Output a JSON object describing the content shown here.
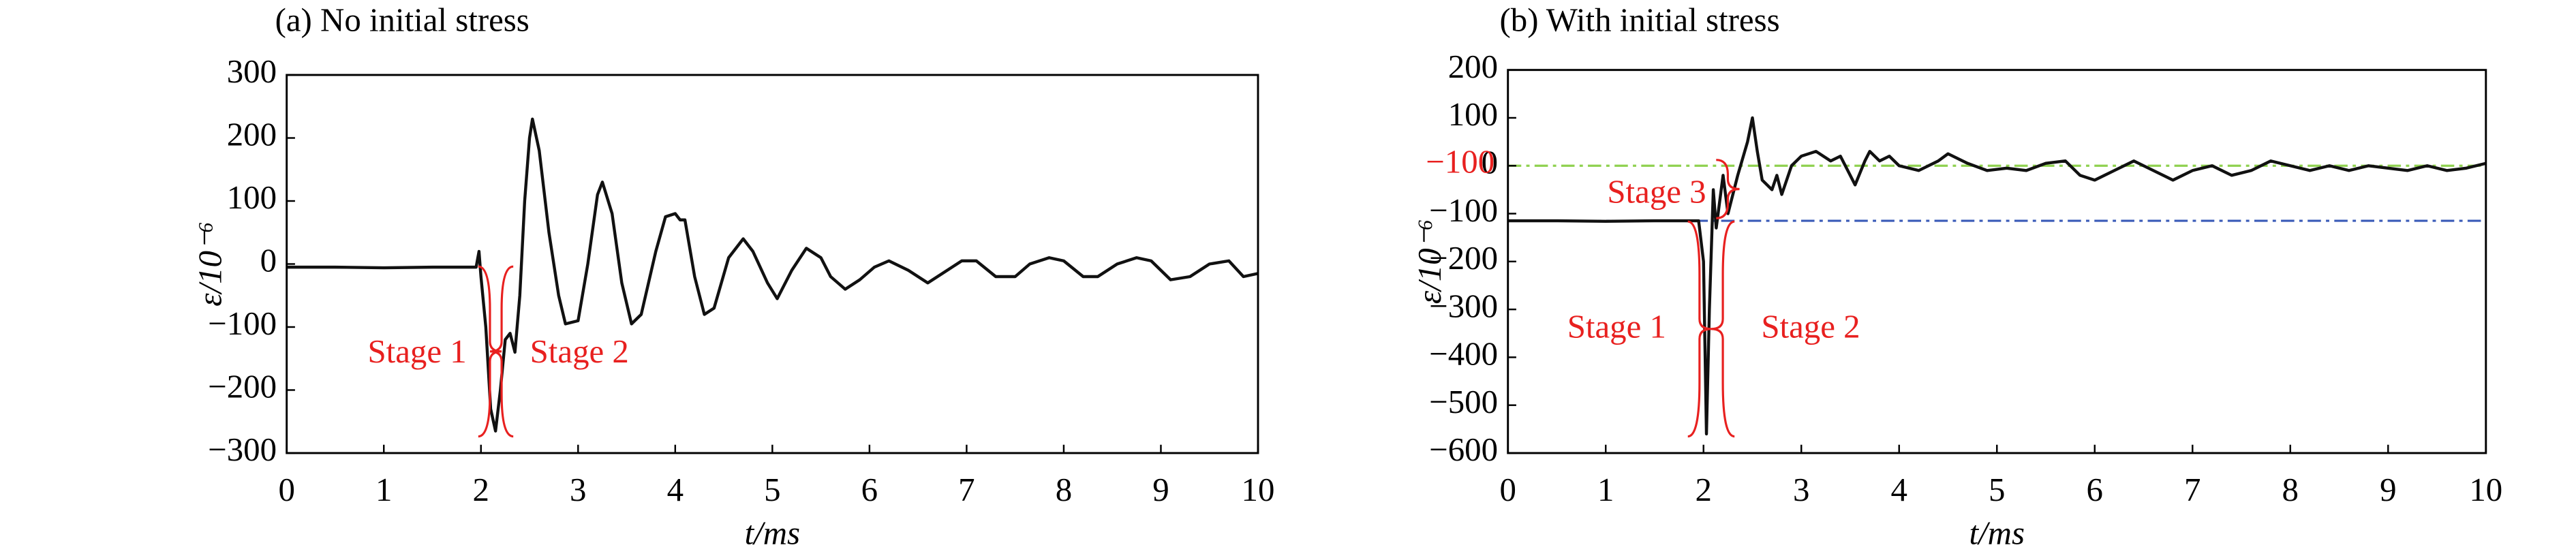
{
  "chart_data": [
    {
      "type": "line",
      "title": "(a) No initial stress",
      "xlabel": "t/ms",
      "ylabel": "ε/10⁻⁶",
      "xlim": [
        0,
        10
      ],
      "xticks": [
        0,
        1,
        2,
        3,
        4,
        5,
        6,
        7,
        8,
        9,
        10
      ],
      "ylim": [
        -300,
        300
      ],
      "yticks": [
        {
          "value": -300,
          "label": "−300"
        },
        {
          "value": -200,
          "label": "−200"
        },
        {
          "value": -100,
          "label": "−100"
        },
        0,
        100,
        200,
        300
      ],
      "x": [
        0,
        0.5,
        1,
        1.5,
        1.95,
        1.98,
        2.0,
        2.05,
        2.1,
        2.15,
        2.2,
        2.25,
        2.3,
        2.35,
        2.4,
        2.45,
        2.5,
        2.53,
        2.6,
        2.7,
        2.8,
        2.87,
        3.0,
        3.1,
        3.2,
        3.25,
        3.35,
        3.45,
        3.55,
        3.65,
        3.8,
        3.9,
        4.0,
        4.05,
        4.1,
        4.2,
        4.3,
        4.4,
        4.55,
        4.7,
        4.8,
        4.95,
        5.05,
        5.2,
        5.35,
        5.5,
        5.6,
        5.75,
        5.9,
        6.05,
        6.2,
        6.4,
        6.6,
        6.75,
        6.95,
        7.1,
        7.3,
        7.5,
        7.65,
        7.85,
        8.0,
        8.2,
        8.35,
        8.55,
        8.75,
        8.9,
        9.1,
        9.3,
        9.5,
        9.7,
        9.85,
        10
      ],
      "series": [
        {
          "color": "#111111",
          "values": [
            -5,
            -5,
            -6,
            -5,
            -5,
            20,
            -20,
            -100,
            -230,
            -265,
            -200,
            -120,
            -110,
            -140,
            -50,
            100,
            200,
            230,
            180,
            50,
            -50,
            -95,
            -90,
            0,
            110,
            130,
            80,
            -30,
            -95,
            -80,
            20,
            75,
            80,
            70,
            70,
            -20,
            -80,
            -70,
            10,
            40,
            20,
            -30,
            -55,
            -10,
            25,
            10,
            -20,
            -40,
            -25,
            -5,
            5,
            -10,
            -30,
            -15,
            5,
            5,
            -20,
            -20,
            0,
            10,
            5,
            -20,
            -20,
            0,
            10,
            5,
            -25,
            -20,
            0,
            5,
            -20,
            -15
          ]
        }
      ],
      "annotations": [
        {
          "text": "Stage 1"
        },
        {
          "text": "Stage 2"
        }
      ],
      "annotation_color": "#e8201f"
    },
    {
      "type": "line",
      "title": "(b) With initial stress",
      "xlabel": "t/ms",
      "ylabel": "ε/10⁻⁶",
      "xlim": [
        0,
        10
      ],
      "xticks": [
        0,
        1,
        2,
        3,
        4,
        5,
        6,
        7,
        8,
        9,
        10
      ],
      "ylim": [
        -600,
        200
      ],
      "yticks": [
        {
          "value": -600,
          "label": "−600"
        },
        {
          "value": -500,
          "label": "−500"
        },
        {
          "value": -400,
          "label": "−400"
        },
        {
          "value": -300,
          "label": "−300"
        },
        {
          "value": -200,
          "label": "−200"
        },
        {
          "value": -100,
          "label": "−100"
        },
        0,
        100,
        200
      ],
      "x": [
        0,
        0.5,
        1,
        1.5,
        1.95,
        2.0,
        2.03,
        2.06,
        2.1,
        2.13,
        2.2,
        2.25,
        2.3,
        2.35,
        2.45,
        2.5,
        2.55,
        2.6,
        2.7,
        2.75,
        2.8,
        2.9,
        3.0,
        3.15,
        3.3,
        3.4,
        3.55,
        3.65,
        3.7,
        3.8,
        3.9,
        4.0,
        4.2,
        4.4,
        4.5,
        4.7,
        4.9,
        5.1,
        5.3,
        5.5,
        5.7,
        5.85,
        6.0,
        6.2,
        6.4,
        6.6,
        6.8,
        7.0,
        7.2,
        7.4,
        7.6,
        7.8,
        8.0,
        8.2,
        8.4,
        8.6,
        8.8,
        9.0,
        9.2,
        9.4,
        9.6,
        9.8,
        10
      ],
      "series": [
        {
          "color": "#111111",
          "values": [
            -115,
            -115,
            -116,
            -115,
            -115,
            -200,
            -560,
            -300,
            -50,
            -130,
            -20,
            -100,
            -60,
            -20,
            50,
            100,
            30,
            -30,
            -50,
            -20,
            -60,
            0,
            20,
            30,
            10,
            20,
            -40,
            10,
            30,
            10,
            20,
            0,
            -10,
            10,
            25,
            5,
            -10,
            -5,
            -10,
            5,
            10,
            -20,
            -30,
            -10,
            10,
            -10,
            -30,
            -10,
            0,
            -20,
            -10,
            10,
            0,
            -10,
            0,
            -10,
            0,
            -5,
            -10,
            0,
            -10,
            -5,
            5
          ]
        }
      ],
      "reference_lines": [
        {
          "value": 0,
          "color": "#8fd14f"
        },
        {
          "value": -115,
          "color": "#3a5bb8"
        }
      ],
      "annotations": [
        {
          "text": "−100"
        },
        {
          "text": "Stage 3"
        },
        {
          "text": "Stage 1"
        },
        {
          "text": "Stage 2"
        }
      ],
      "annotation_color": "#e8201f"
    }
  ]
}
